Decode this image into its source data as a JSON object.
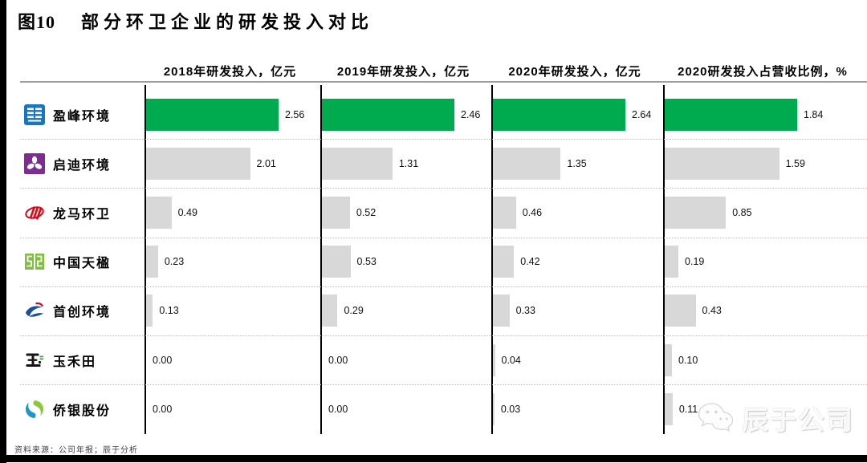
{
  "page": {
    "title_tag": "图10",
    "title_text": "部分环卫企业的研发投入对比",
    "footer_source": "资料来源：公司年报；辰于分析",
    "watermark_label": "辰于公司",
    "watermark_icon": "wechat-icon"
  },
  "colors": {
    "highlight_bar": "#00AB50",
    "default_bar": "#D8D8D8",
    "axis": "#000000",
    "header_rule": "#9E9E9E",
    "row_divider": "#BDBDBD"
  },
  "chart_data": {
    "type": "bar",
    "orientation": "horizontal",
    "legend": "none",
    "grid": "dotted-row-dividers",
    "value_labels": "outside-end, 2 decimals",
    "scaling": "each column scaled independently to its max value",
    "categories": [
      "盈峰环境",
      "启迪环境",
      "龙马环卫",
      "中国天楹",
      "首创环境",
      "玉禾田",
      "侨银股份"
    ],
    "category_logos": [
      "yingfeng-logo",
      "qidi-logo",
      "longma-logo",
      "tianying-logo",
      "shouchuang-logo",
      "yuhetian-logo",
      "qiaoyin-logo"
    ],
    "highlight_category": "盈峰环境",
    "series": [
      {
        "name": "2018年研发投入，亿元",
        "values": [
          2.56,
          2.01,
          0.49,
          0.23,
          0.13,
          0.0,
          0.0
        ]
      },
      {
        "name": "2019年研发投入，亿元",
        "values": [
          2.46,
          1.31,
          0.52,
          0.53,
          0.29,
          0.0,
          0.0
        ]
      },
      {
        "name": "2020年研发投入，亿元",
        "values": [
          2.64,
          1.35,
          0.46,
          0.42,
          0.33,
          0.04,
          0.03
        ]
      },
      {
        "name": "2020研发投入占营收比例，%",
        "values": [
          1.84,
          1.59,
          0.85,
          0.19,
          0.43,
          0.1,
          0.11
        ]
      }
    ]
  }
}
